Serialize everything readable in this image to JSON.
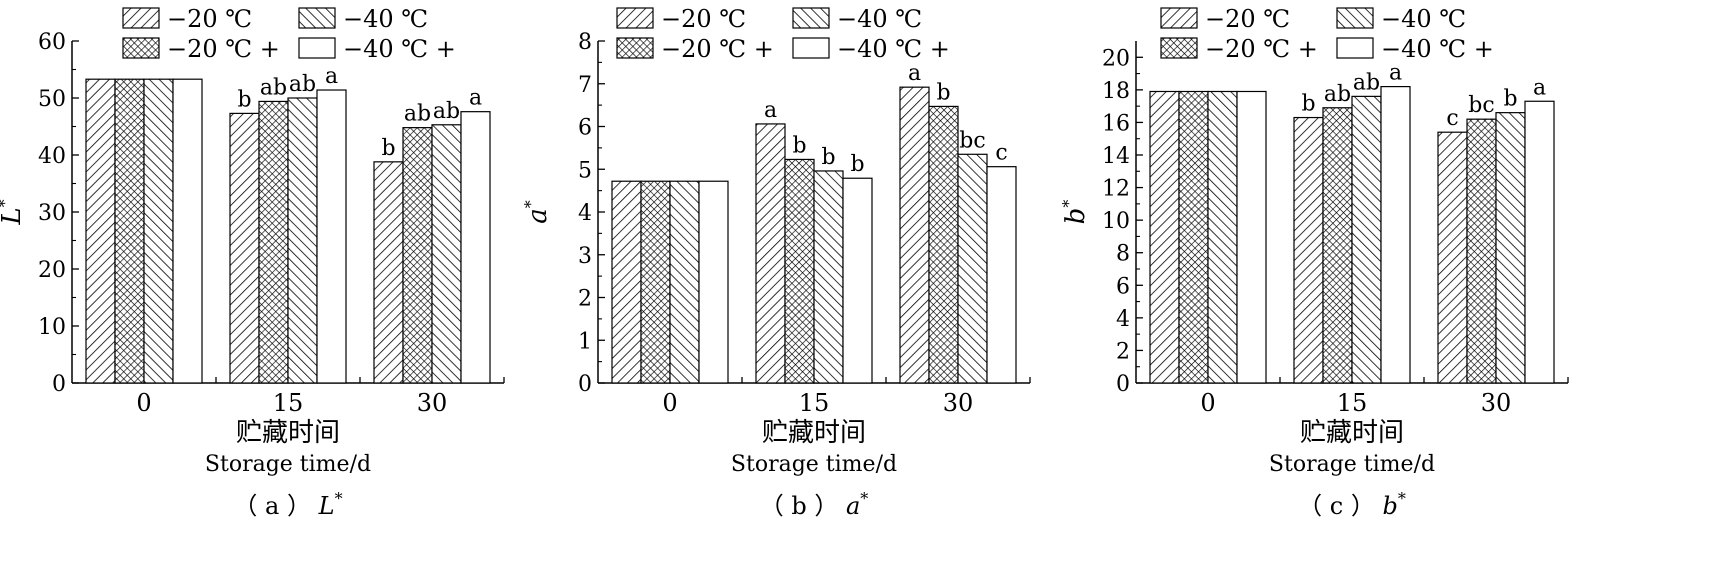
{
  "chart_data": [
    {
      "type": "bar",
      "caption": {
        "prefix": "（ a ）",
        "var": "L",
        "sup": "*"
      },
      "ylabel": {
        "var": "L",
        "sup": "*"
      },
      "xlabel": "贮藏时间",
      "xlabel_en": "Storage time/d",
      "categories": [
        "0",
        "15",
        "30"
      ],
      "ylim": [
        0,
        60
      ],
      "yticks": [
        "0",
        "10",
        "20",
        "30",
        "40",
        "50",
        "60"
      ],
      "series": [
        {
          "name": "−20 ℃",
          "values": [
            53.3,
            47.3,
            38.8
          ],
          "labels": [
            "",
            "b",
            "b"
          ]
        },
        {
          "name": "−20 ℃ +",
          "values": [
            53.3,
            49.4,
            44.8
          ],
          "labels": [
            "",
            "ab",
            "ab"
          ]
        },
        {
          "name": "−40 ℃",
          "values": [
            53.3,
            50.0,
            45.3
          ],
          "labels": [
            "",
            "ab",
            "ab"
          ]
        },
        {
          "name": "−40 ℃ +",
          "values": [
            53.3,
            51.4,
            47.6
          ],
          "labels": [
            "",
            "a",
            "a"
          ]
        }
      ]
    },
    {
      "type": "bar",
      "caption": {
        "prefix": "（ b ）",
        "var": "a",
        "sup": "*"
      },
      "ylabel": {
        "var": "a",
        "sup": "*"
      },
      "xlabel": "贮藏时间",
      "xlabel_en": "Storage time/d",
      "categories": [
        "0",
        "15",
        "30"
      ],
      "ylim": [
        0,
        8
      ],
      "yticks": [
        "0",
        "1",
        "2",
        "3",
        "4",
        "5",
        "6",
        "7",
        "8"
      ],
      "series": [
        {
          "name": "−20 ℃",
          "values": [
            4.72,
            6.06,
            6.92
          ],
          "labels": [
            "",
            "a",
            "a"
          ]
        },
        {
          "name": "−20 ℃ +",
          "values": [
            4.72,
            5.23,
            6.47
          ],
          "labels": [
            "",
            "b",
            "b"
          ]
        },
        {
          "name": "−40 ℃",
          "values": [
            4.72,
            4.96,
            5.35
          ],
          "labels": [
            "",
            "b",
            "bc"
          ]
        },
        {
          "name": "−40 ℃ +",
          "values": [
            4.72,
            4.79,
            5.06
          ],
          "labels": [
            "",
            "b",
            "c"
          ]
        }
      ]
    },
    {
      "type": "bar",
      "caption": {
        "prefix": "（ c ）",
        "var": "b",
        "sup": "*"
      },
      "ylabel": {
        "var": "b",
        "sup": "*"
      },
      "xlabel": "贮藏时间",
      "xlabel_en": "Storage time/d",
      "categories": [
        "0",
        "15",
        "30"
      ],
      "ylim": [
        0,
        21
      ],
      "yticks": [
        "0",
        "2",
        "4",
        "6",
        "8",
        "10",
        "12",
        "14",
        "16",
        "18",
        "20"
      ],
      "series": [
        {
          "name": "−20 ℃",
          "values": [
            17.9,
            16.3,
            15.4
          ],
          "labels": [
            "",
            "b",
            "c"
          ]
        },
        {
          "name": "−20 ℃ +",
          "values": [
            17.9,
            16.9,
            16.2
          ],
          "labels": [
            "",
            "ab",
            "bc"
          ]
        },
        {
          "name": "−40 ℃",
          "values": [
            17.9,
            17.6,
            16.6
          ],
          "labels": [
            "",
            "ab",
            "b"
          ]
        },
        {
          "name": "−40 ℃ +",
          "values": [
            17.9,
            18.2,
            17.3
          ],
          "labels": [
            "",
            "a",
            "a"
          ]
        }
      ]
    }
  ],
  "legend_layout": "top, two rows × two columns",
  "patterns": [
    "diagonal-forward",
    "crosshatch",
    "diagonal-backward",
    "solid-white"
  ]
}
